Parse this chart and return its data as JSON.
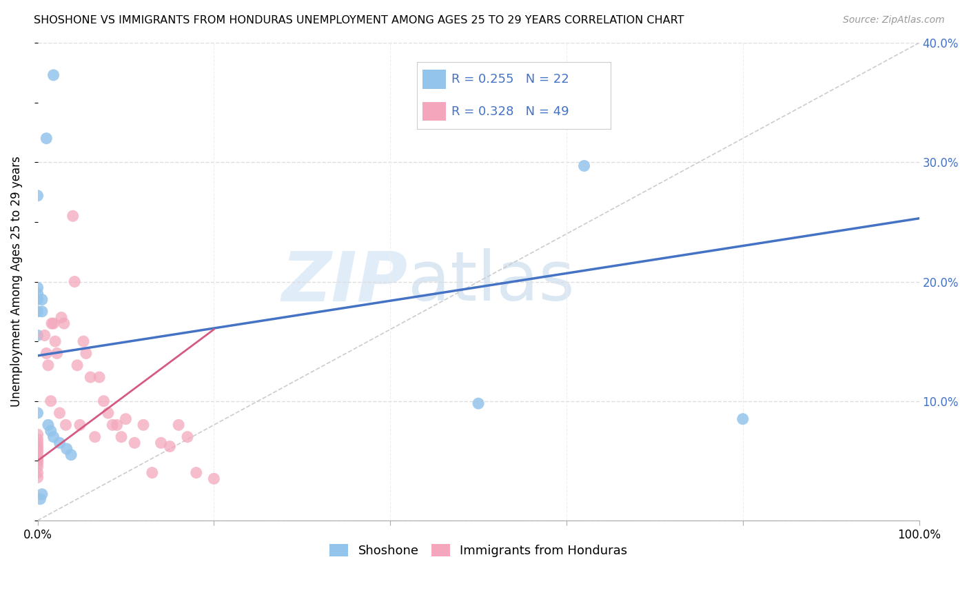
{
  "title": "SHOSHONE VS IMMIGRANTS FROM HONDURAS UNEMPLOYMENT AMONG AGES 25 TO 29 YEARS CORRELATION CHART",
  "source": "Source: ZipAtlas.com",
  "ylabel": "Unemployment Among Ages 25 to 29 years",
  "xlim": [
    0.0,
    1.0
  ],
  "ylim": [
    0.0,
    0.4
  ],
  "xticks": [
    0.0,
    0.2,
    0.4,
    0.6,
    0.8,
    1.0
  ],
  "xticklabels": [
    "0.0%",
    "",
    "",
    "",
    "",
    "100.0%"
  ],
  "yticks": [
    0.0,
    0.1,
    0.2,
    0.3,
    0.4
  ],
  "yticklabels": [
    "",
    "10.0%",
    "20.0%",
    "30.0%",
    "40.0%"
  ],
  "shoshone_color": "#93c4eb",
  "honduras_color": "#f4a7bc",
  "shoshone_line_color": "#4472c4",
  "honduras_line_color": "#d45a80",
  "legend_R_shoshone": "0.255",
  "legend_N_shoshone": "22",
  "legend_R_honduras": "0.328",
  "legend_N_honduras": "49",
  "legend_label_shoshone": "Shoshone",
  "legend_label_honduras": "Immigrants from Honduras",
  "watermark_zip": "ZIP",
  "watermark_atlas": "atlas",
  "shoshone_x": [
    0.018,
    0.01,
    0.0,
    0.0,
    0.0,
    0.0,
    0.0,
    0.0,
    0.005,
    0.005,
    0.0,
    0.012,
    0.015,
    0.018,
    0.025,
    0.033,
    0.038,
    0.5,
    0.8,
    0.62,
    0.003,
    0.005
  ],
  "shoshone_y": [
    0.373,
    0.32,
    0.272,
    0.195,
    0.19,
    0.185,
    0.175,
    0.155,
    0.185,
    0.175,
    0.09,
    0.08,
    0.075,
    0.07,
    0.065,
    0.06,
    0.055,
    0.098,
    0.085,
    0.297,
    0.018,
    0.022
  ],
  "honduras_x": [
    0.0,
    0.0,
    0.0,
    0.0,
    0.0,
    0.0,
    0.0,
    0.0,
    0.0,
    0.0,
    0.0,
    0.0,
    0.0,
    0.008,
    0.01,
    0.012,
    0.015,
    0.016,
    0.018,
    0.02,
    0.022,
    0.025,
    0.027,
    0.03,
    0.032,
    0.04,
    0.042,
    0.045,
    0.048,
    0.052,
    0.055,
    0.06,
    0.065,
    0.07,
    0.075,
    0.08,
    0.085,
    0.09,
    0.095,
    0.1,
    0.11,
    0.12,
    0.13,
    0.14,
    0.15,
    0.16,
    0.17,
    0.18,
    0.2
  ],
  "honduras_y": [
    0.072,
    0.068,
    0.065,
    0.062,
    0.06,
    0.058,
    0.055,
    0.052,
    0.05,
    0.048,
    0.045,
    0.04,
    0.036,
    0.155,
    0.14,
    0.13,
    0.1,
    0.165,
    0.165,
    0.15,
    0.14,
    0.09,
    0.17,
    0.165,
    0.08,
    0.255,
    0.2,
    0.13,
    0.08,
    0.15,
    0.14,
    0.12,
    0.07,
    0.12,
    0.1,
    0.09,
    0.08,
    0.08,
    0.07,
    0.085,
    0.065,
    0.08,
    0.04,
    0.065,
    0.062,
    0.08,
    0.07,
    0.04,
    0.035
  ],
  "shoshone_line_x": [
    0.0,
    1.0
  ],
  "shoshone_line_y_start": 0.138,
  "shoshone_line_y_end": 0.253,
  "honduras_line_x": [
    0.0,
    0.2
  ],
  "honduras_line_y_start": 0.05,
  "honduras_line_y_end": 0.16
}
